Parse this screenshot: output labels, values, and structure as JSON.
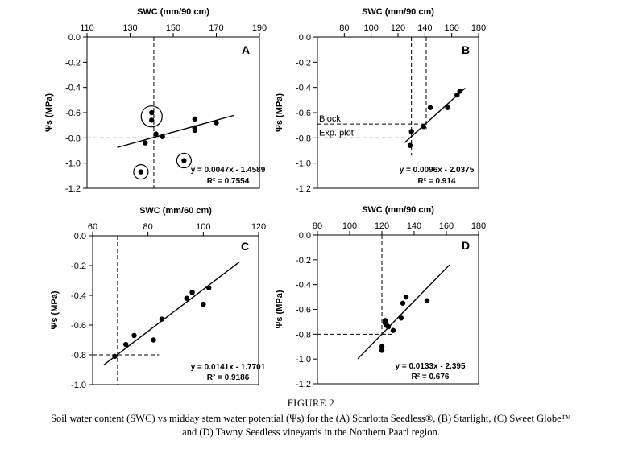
{
  "figure": {
    "number": "FIGURE 2",
    "caption_line1": "Soil water content (SWC) vs midday stem water potential (Ψs) for the (A) Scarlotta Seedless®, (B) Starlight, (C) Sweet Globe™",
    "caption_line2": "and (D) Tawny Seedless vineyards in the Northern Paarl region."
  },
  "chart_data": [
    {
      "panel": "A",
      "type": "scatter",
      "title": "SWC (mm/90 cm)",
      "ylabel": "Ψs (MPa)",
      "xlim": [
        110,
        190
      ],
      "ylim": [
        -1.2,
        0.0
      ],
      "xticks": [
        110,
        130,
        150,
        170,
        190
      ],
      "yticks": [
        0.0,
        -0.2,
        -0.4,
        -0.6,
        -0.8,
        -1.0,
        -1.2
      ],
      "xtick_labels": [
        "110",
        "130",
        "150",
        "170",
        "190"
      ],
      "ytick_labels": [
        "0.0",
        "-0.2",
        "-0.4",
        "-0.6",
        "-0.8",
        "-1.0",
        "-1.2"
      ],
      "points": [
        [
          135,
          -1.07
        ],
        [
          137,
          -0.84
        ],
        [
          140,
          -0.6
        ],
        [
          140,
          -0.66
        ],
        [
          142,
          -0.77
        ],
        [
          145,
          -0.79
        ],
        [
          155,
          -0.98
        ],
        [
          160,
          -0.65
        ],
        [
          160,
          -0.72
        ],
        [
          160,
          -0.74
        ],
        [
          170,
          -0.68
        ]
      ],
      "circled_points": [
        [
          140,
          -0.63
        ],
        [
          135,
          -1.07
        ],
        [
          155,
          -0.98
        ]
      ],
      "fit": {
        "slope": 0.0047,
        "intercept": -1.4589,
        "x_from": 124,
        "x_to": 178
      },
      "ref_x": 141,
      "ref_y": -0.8,
      "equation": "y = 0.0047x - 1.4589",
      "r2": "R² = 0.7554",
      "annotations": []
    },
    {
      "panel": "B",
      "type": "scatter",
      "title": "SWC (mm/90 cm)",
      "ylabel": "Ψs (MPa)",
      "xlim": [
        60,
        180
      ],
      "ylim": [
        -1.2,
        0.0
      ],
      "xticks": [
        80,
        100,
        120,
        140,
        160,
        180
      ],
      "yticks": [
        0.0,
        -0.2,
        -0.4,
        -0.6,
        -0.8,
        -1.0,
        -1.2
      ],
      "xtick_labels": [
        "80",
        "100",
        "120",
        "140",
        "160",
        "180"
      ],
      "ytick_labels": [
        "0.0",
        "-0.2",
        "-0.4",
        "-0.6",
        "-0.8",
        "-1.0",
        "-1.2"
      ],
      "points": [
        [
          129,
          -0.86
        ],
        [
          130,
          -0.75
        ],
        [
          139,
          -0.71
        ],
        [
          144,
          -0.56
        ],
        [
          157,
          -0.56
        ],
        [
          164,
          -0.46
        ],
        [
          166,
          -0.43
        ]
      ],
      "circled_points": [],
      "fit": {
        "slope": 0.0096,
        "intercept": -2.0375,
        "x_from": 125,
        "x_to": 170
      },
      "ref_x_lines": [
        130,
        141
      ],
      "ref_y_lines": [
        -0.69,
        -0.8
      ],
      "equation": "y = 0.0096x - 2.0375",
      "r2": "R² = 0.914",
      "annotations": [
        "Block",
        "Exp. plot"
      ]
    },
    {
      "panel": "C",
      "type": "scatter",
      "title": "SWC (mm/60 cm)",
      "ylabel": "Ψs (MPa)",
      "xlim": [
        60,
        120
      ],
      "ylim": [
        -1.0,
        0.0
      ],
      "xticks": [
        60,
        80,
        100,
        120
      ],
      "yticks": [
        0.0,
        -0.2,
        -0.4,
        -0.6,
        -0.8,
        -1.0
      ],
      "xtick_labels": [
        "60",
        "80",
        "100",
        "120"
      ],
      "ytick_labels": [
        "0.0",
        "-0.2",
        "-0.4",
        "-0.6",
        "-0.8",
        "-1.0"
      ],
      "points": [
        [
          68,
          -0.81
        ],
        [
          72,
          -0.73
        ],
        [
          75,
          -0.67
        ],
        [
          82,
          -0.7
        ],
        [
          85,
          -0.56
        ],
        [
          94,
          -0.42
        ],
        [
          96,
          -0.38
        ],
        [
          100,
          -0.46
        ],
        [
          102,
          -0.35
        ]
      ],
      "circled_points": [],
      "fit": {
        "slope": 0.0141,
        "intercept": -1.7701,
        "x_from": 64,
        "x_to": 113
      },
      "ref_x": 69,
      "ref_y": -0.8,
      "equation": "y = 0.0141x - 1.7701",
      "r2": "R² = 0.9186",
      "annotations": []
    },
    {
      "panel": "D",
      "type": "scatter",
      "title": "SWC (mm/90 cm)",
      "ylabel": "Ψs (MPa)",
      "xlim": [
        80,
        180
      ],
      "ylim": [
        -1.2,
        0.0
      ],
      "xticks": [
        80,
        100,
        120,
        140,
        160,
        180
      ],
      "yticks": [
        0.0,
        -0.2,
        -0.4,
        -0.6,
        -0.8,
        -1.0,
        -1.2
      ],
      "xtick_labels": [
        "80",
        "100",
        "120",
        "140",
        "160",
        "180"
      ],
      "ytick_labels": [
        "0.0",
        "-0.2",
        "-0.4",
        "-0.6",
        "-0.8",
        "-1.0",
        "-1.2"
      ],
      "points": [
        [
          120,
          -0.93
        ],
        [
          120,
          -0.9
        ],
        [
          122,
          -0.69
        ],
        [
          122,
          -0.71
        ],
        [
          123,
          -0.73
        ],
        [
          124,
          -0.74
        ],
        [
          127,
          -0.77
        ],
        [
          132,
          -0.67
        ],
        [
          133,
          -0.55
        ],
        [
          135,
          -0.5
        ],
        [
          148,
          -0.53
        ]
      ],
      "circled_points": [],
      "fit": {
        "slope": 0.0133,
        "intercept": -2.395,
        "x_from": 105,
        "x_to": 162
      },
      "ref_x": 120,
      "ref_y": -0.8,
      "equation": "y = 0.0133x - 2.395",
      "r2": "R² = 0.676",
      "annotations": []
    }
  ]
}
